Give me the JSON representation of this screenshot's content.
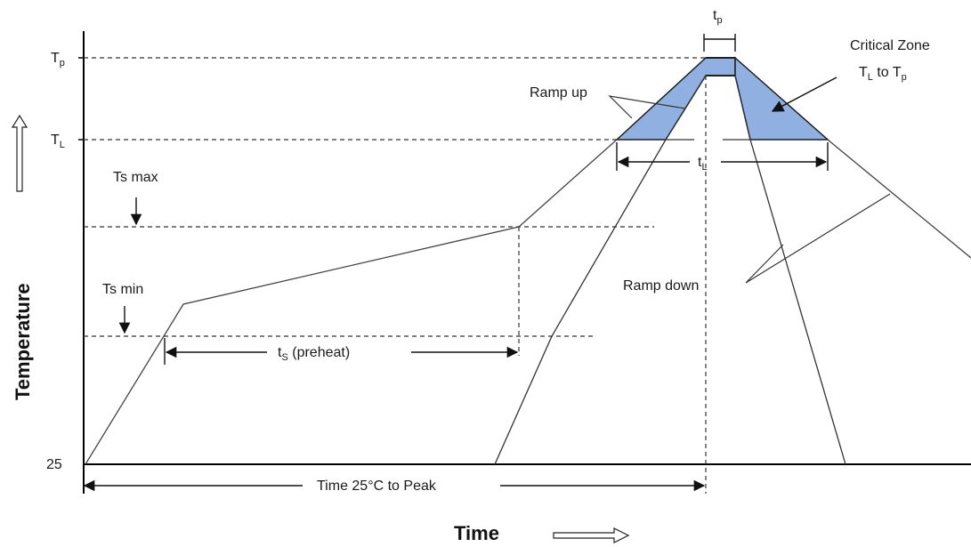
{
  "axes": {
    "y_title": "Temperature",
    "x_title": "Time",
    "y_tick_25": "25"
  },
  "labels": {
    "tp_main": "T",
    "tp_sub": "p",
    "tl_main": "T",
    "tl_sub": "L",
    "ts_max": "Ts max",
    "ts_min": "Ts min",
    "ramp_up": "Ramp up",
    "ramp_down": "Ramp down",
    "critical_zone": "Critical Zone",
    "critical_range_t1": "T",
    "critical_range_s1": "L",
    "critical_range_to": " to T",
    "critical_range_s2": "p",
    "tp_time_main": "t",
    "tp_time_sub": "p",
    "tl_time_main": "t",
    "tl_time_sub": "L",
    "ts_preheat_main": "t",
    "ts_preheat_sub": "S",
    "ts_preheat_rest": " (preheat)",
    "time_to_peak": "Time 25°C to Peak"
  },
  "colors": {
    "critical_zone_fill": "#8fb0e0",
    "critical_zone_stroke": "#1f1f1f",
    "line": "#333333",
    "dashed": "#333333"
  }
}
